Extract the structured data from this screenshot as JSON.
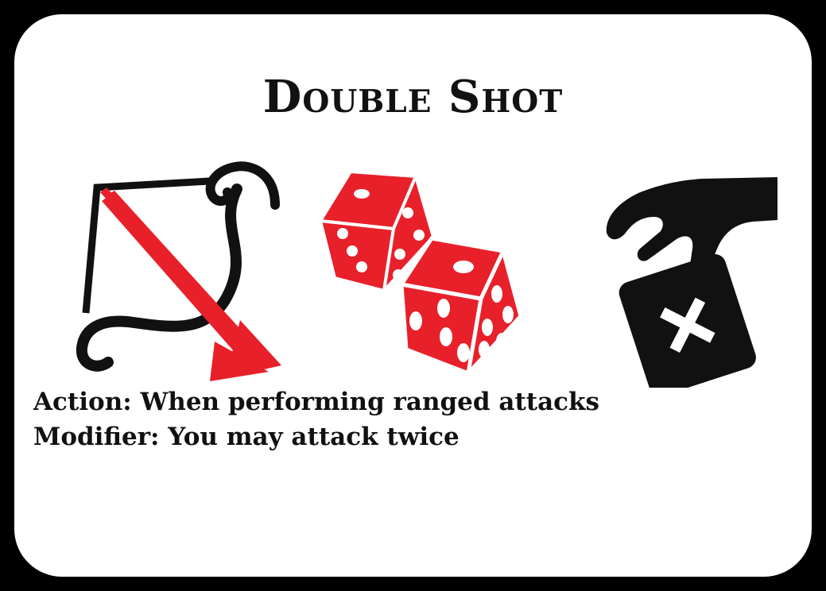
{
  "card": {
    "title": "Double Shot",
    "icons": [
      "bow-arrow-icon",
      "dice-icon",
      "hand-discard-card-icon"
    ],
    "rules": {
      "action": "Action: When performing ranged attacks",
      "modifier": "Modifier: You may attack twice"
    },
    "colors": {
      "background": "#ffffff",
      "border": "#000000",
      "accent_red": "#e8202a",
      "ink": "#111111"
    }
  }
}
